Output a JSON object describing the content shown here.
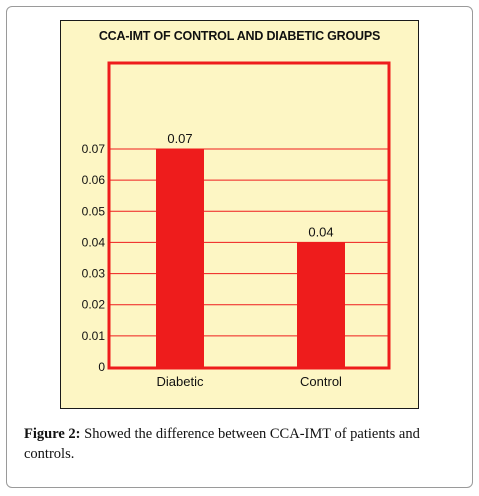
{
  "chart_data": {
    "type": "bar",
    "title": "CCA-IMT OF CONTROL AND DIABETIC GROUPS",
    "categories": [
      "Diabetic",
      "Control"
    ],
    "values": [
      0.07,
      0.04
    ],
    "data_labels": [
      "0.07",
      "0.04"
    ],
    "ylim": [
      0,
      0.07
    ],
    "yticks": [
      0,
      0.01,
      0.02,
      0.03,
      0.04,
      0.05,
      0.06,
      0.07
    ],
    "ytick_labels": [
      "0",
      "0.01",
      "0.02",
      "0.03",
      "0.04",
      "0.05",
      "0.06",
      "0.07"
    ],
    "grid": true,
    "colors": {
      "bar": "#ee1c1c",
      "plot_border": "#ee1c1c",
      "gridline": "#ee1c1c",
      "panel_background": "#fdf6c4"
    }
  },
  "caption": {
    "label": "Figure 2:",
    "text": " Showed the difference between CCA-IMT of patients and controls."
  }
}
